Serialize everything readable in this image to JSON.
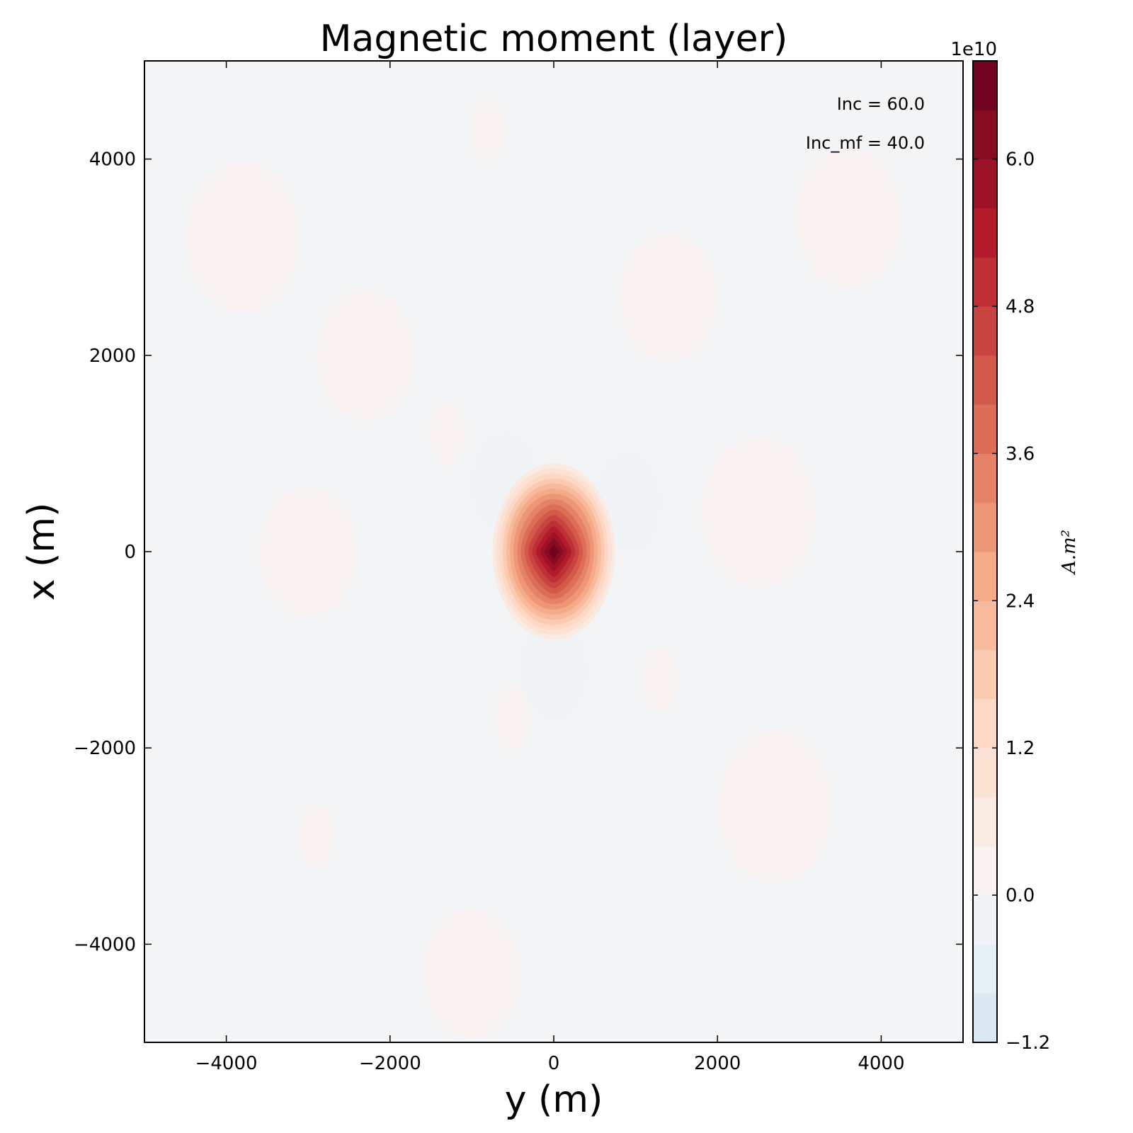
{
  "chart_data": {
    "type": "heatmap",
    "title": "Magnetic moment (layer)",
    "xlabel": "y (m)",
    "ylabel": "x (m)",
    "xlim": [
      -5000,
      5000
    ],
    "ylim": [
      -5000,
      5000
    ],
    "x_ticks": [
      -4000,
      -2000,
      0,
      2000,
      4000
    ],
    "y_ticks": [
      -4000,
      -2000,
      0,
      2000,
      4000
    ],
    "x_tick_labels": [
      "−4000",
      "−2000",
      "0",
      "2000",
      "4000"
    ],
    "y_tick_labels": [
      "−4000",
      "−2000",
      "0",
      "2000",
      "4000"
    ],
    "annotations": [
      "Inc = 60.0",
      "Inc_mf = 40.0"
    ],
    "colorbar": {
      "label": "A.m²",
      "multiplier": "1e10",
      "range": [
        -1.2,
        6.8
      ],
      "ticks": [
        -1.2,
        0.0,
        1.2,
        2.4,
        3.6,
        4.8,
        6.0
      ],
      "tick_labels": [
        "−1.2",
        "0.0",
        "1.2",
        "2.4",
        "3.6",
        "4.8",
        "6.0"
      ],
      "levels": 20,
      "colormap": "RdBu_r"
    },
    "grid": false,
    "peak": {
      "y": 0,
      "x": 0,
      "value": 6.8
    },
    "features": [
      {
        "kind": "positive-anomaly",
        "y": 0,
        "x": 0,
        "value": 6.8,
        "radius_y": 750,
        "radius_x": 900
      },
      {
        "kind": "negative-lobe",
        "y": -600,
        "x": 700,
        "value": -0.35
      },
      {
        "kind": "negative-lobe",
        "y": 900,
        "x": 500,
        "value": -0.3
      },
      {
        "kind": "negative-lobe",
        "y": 0,
        "x": -1200,
        "value": -0.35
      },
      {
        "kind": "weak-positive",
        "y": -1300,
        "x": 1200,
        "value": 0.25
      },
      {
        "kind": "weak-positive",
        "y": 1300,
        "x": -1300,
        "value": 0.25
      },
      {
        "kind": "weak-positive",
        "y": -500,
        "x": -1700,
        "value": 0.2
      },
      {
        "kind": "weak-positive",
        "y": -2900,
        "x": -2900,
        "value": 0.2
      },
      {
        "kind": "weak-positive",
        "y": -800,
        "x": 4300,
        "value": 0.2
      }
    ]
  }
}
